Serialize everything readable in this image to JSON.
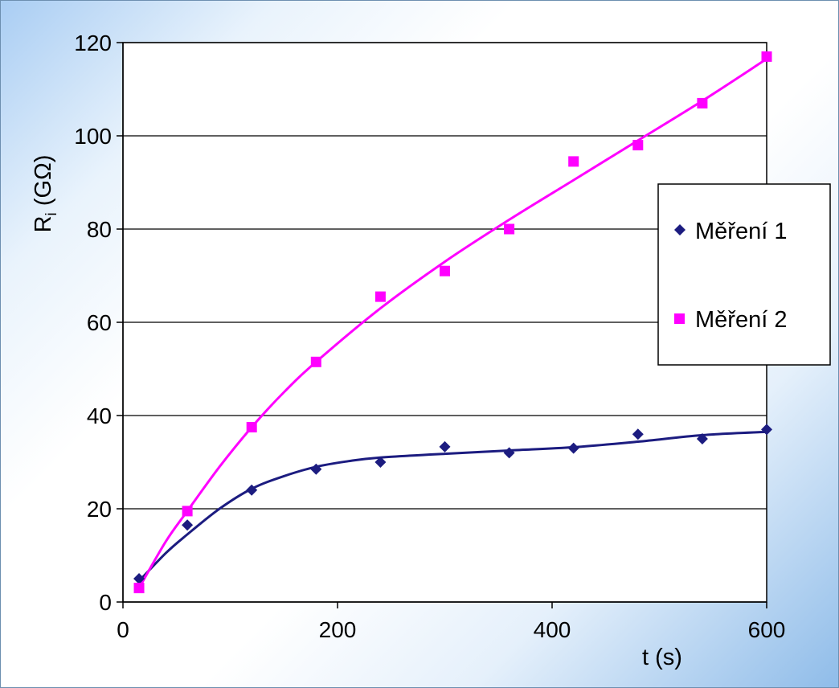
{
  "chart_data": {
    "type": "scatter",
    "title": "",
    "xlabel": "t (s)",
    "ylabel_main": "R",
    "ylabel_sub": "i",
    "ylabel_unit": " (GΩ)",
    "xlim": [
      0,
      600
    ],
    "ylim": [
      0,
      120
    ],
    "x_ticks": [
      0,
      200,
      400,
      600
    ],
    "y_ticks": [
      0,
      20,
      40,
      60,
      80,
      100,
      120
    ],
    "grid": "horizontal",
    "legend_position": "right",
    "series": [
      {
        "name": "Měření 1",
        "color": "#1c1c80",
        "marker": "diamond",
        "x": [
          15,
          60,
          120,
          180,
          240,
          300,
          360,
          420,
          480,
          540,
          600
        ],
        "y": [
          5,
          16.5,
          24,
          28.5,
          30,
          33.3,
          32,
          33,
          36,
          35,
          37
        ],
        "trend": [
          [
            15,
            4.5
          ],
          [
            40,
            10.5
          ],
          [
            60,
            14.5
          ],
          [
            90,
            20
          ],
          [
            120,
            24.3
          ],
          [
            150,
            27
          ],
          [
            180,
            29
          ],
          [
            210,
            30.2
          ],
          [
            240,
            31
          ],
          [
            300,
            31.8
          ],
          [
            360,
            32.5
          ],
          [
            420,
            33.2
          ],
          [
            480,
            34.4
          ],
          [
            540,
            35.8
          ],
          [
            600,
            36.5
          ]
        ]
      },
      {
        "name": "Měření 2",
        "color": "#ff00ff",
        "marker": "square",
        "x": [
          15,
          60,
          120,
          180,
          240,
          300,
          360,
          420,
          480,
          540,
          600
        ],
        "y": [
          3,
          19.5,
          37.5,
          51.5,
          65.5,
          71,
          80,
          94.5,
          98,
          107,
          117
        ],
        "trend": [
          [
            15,
            3
          ],
          [
            40,
            13
          ],
          [
            60,
            19.5
          ],
          [
            90,
            29
          ],
          [
            120,
            37.5
          ],
          [
            150,
            45
          ],
          [
            180,
            51.5
          ],
          [
            240,
            63
          ],
          [
            300,
            73
          ],
          [
            360,
            82
          ],
          [
            420,
            90.5
          ],
          [
            480,
            99
          ],
          [
            540,
            107.5
          ],
          [
            600,
            116.5
          ]
        ]
      }
    ]
  }
}
